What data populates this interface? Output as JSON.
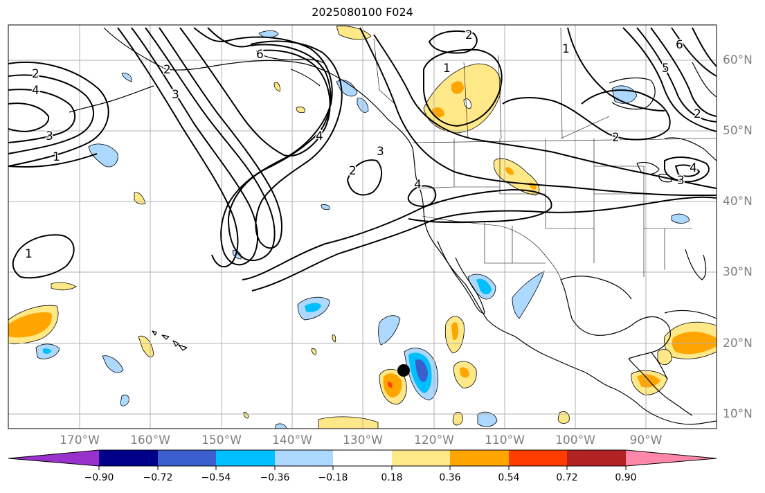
{
  "title": "2025080100 F024",
  "longitude_labels": [
    "170°W",
    "160°W",
    "150°W",
    "140°W",
    "130°W",
    "120°W",
    "110°W",
    "100°W",
    "90°W"
  ],
  "latitude_labels": [
    "60°N",
    "50°N",
    "40°N",
    "30°N",
    "20°N",
    "10°N"
  ],
  "contour_labels": [
    "2",
    "4",
    "3",
    "1",
    "2",
    "3",
    "6",
    "4",
    "2",
    "3",
    "4",
    "1",
    "2",
    "1",
    "2",
    "1",
    "2",
    "6",
    "5",
    "3",
    "4"
  ],
  "colorbar": {
    "tick_labels": [
      "−0.90",
      "−0.72",
      "−0.54",
      "−0.36",
      "−0.18",
      "0.18",
      "0.36",
      "0.54",
      "0.72",
      "0.90"
    ],
    "colors": [
      "#9932cc",
      "#00008b",
      "#3a5fcd",
      "#00bfff",
      "#add8ff",
      "#ffffff",
      "#ffe888",
      "#ffa500",
      "#ff3d00",
      "#b22222",
      "#ff88aa"
    ]
  },
  "marker": "tropical-cyclone-position"
}
